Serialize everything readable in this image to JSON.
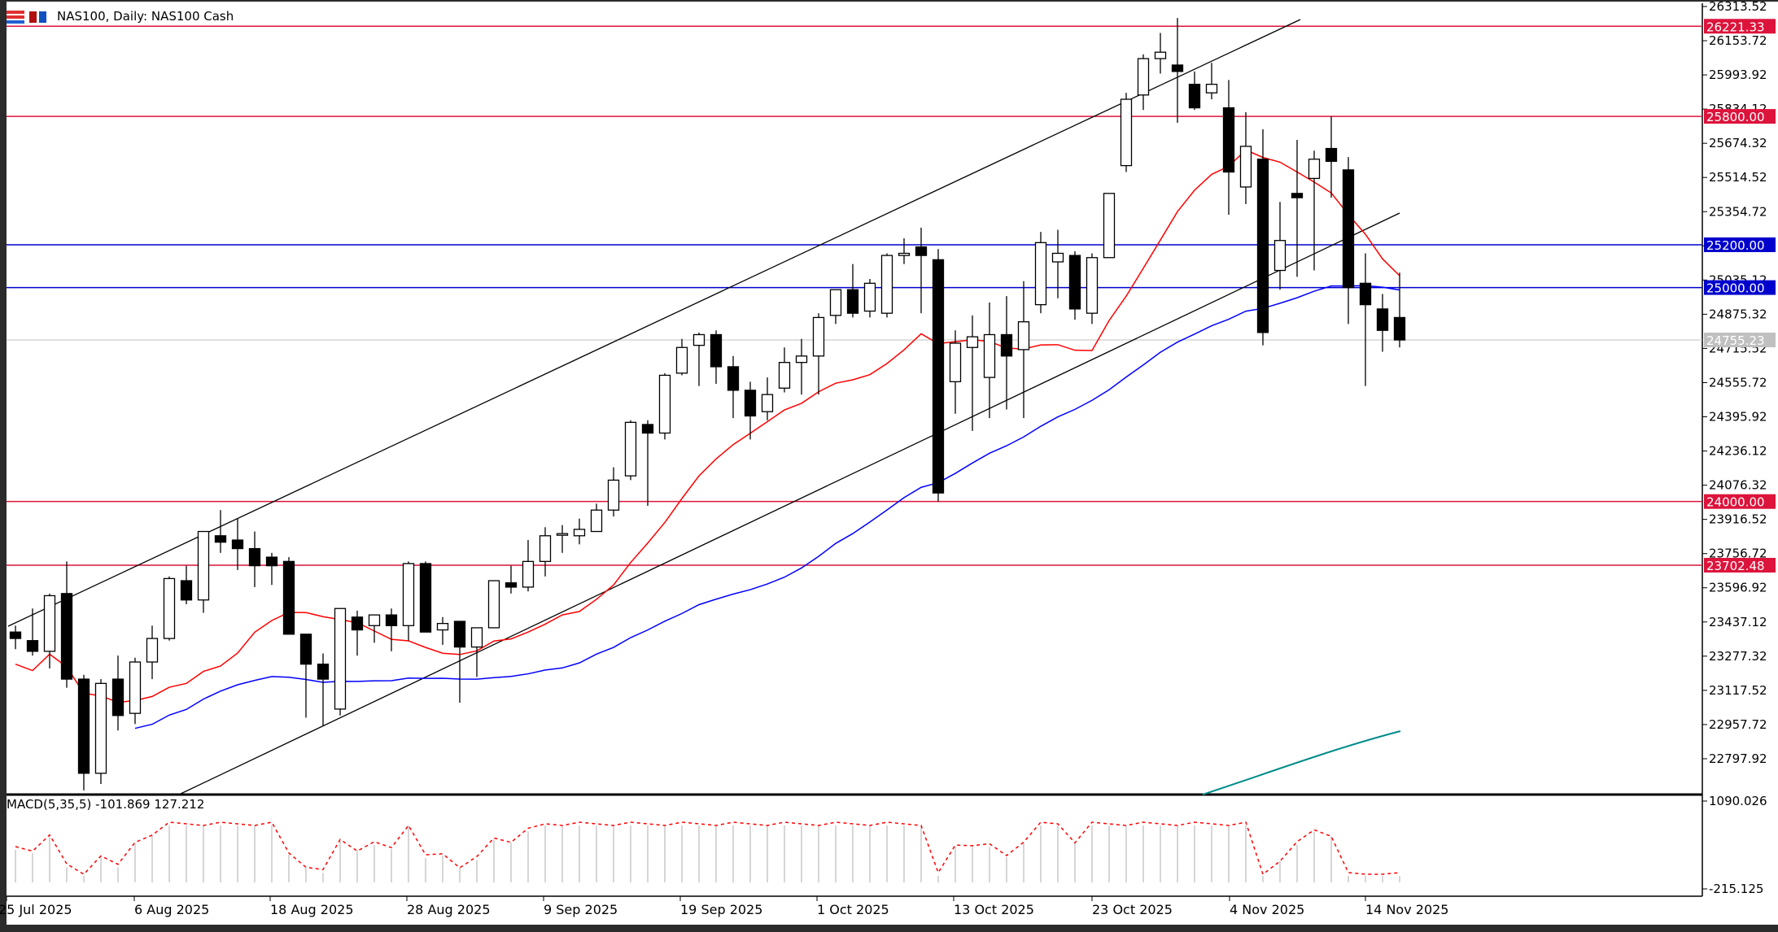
{
  "window": {
    "symbol": "NAS100",
    "timeframe": "Daily",
    "description": "NAS100 Cash",
    "title": "NAS100, Daily:  NAS100 Cash"
  },
  "indicator": {
    "macd_label": "MACD(5,35,5) -101.869 127.212",
    "macd_axis_max": "1090.026",
    "macd_axis_min": "-215.125"
  },
  "colors": {
    "red_level": "#dc143c",
    "blue_level": "#0000cd",
    "current_price": "#c0c0c0",
    "ma_fast": "#ff0000",
    "ma_slow": "#0000ff",
    "ma_long": "#008b8b",
    "signal": "#ff0000",
    "histogram": "#c8c8c8"
  },
  "chart_data": {
    "type": "candlestick",
    "title": "NAS100, Daily: NAS100 Cash",
    "price_axis_ticks": [
      "26313.52",
      "26153.72",
      "25993.92",
      "25834.12",
      "25674.32",
      "25514.52",
      "25354.72",
      "25194.92",
      "25035.12",
      "24875.32",
      "24715.52",
      "24555.72",
      "24395.92",
      "24236.12",
      "24076.32",
      "23916.52",
      "23756.72",
      "23596.92",
      "23437.12",
      "23277.32",
      "23117.52",
      "22957.72",
      "22797.92"
    ],
    "date_axis_ticks": [
      "25 Jul 2025",
      "6 Aug 2025",
      "18 Aug 2025",
      "28 Aug 2025",
      "9 Sep 2025",
      "19 Sep 2025",
      "1 Oct 2025",
      "13 Oct 2025",
      "23 Oct 2025",
      "4 Nov 2025",
      "14 Nov 2025"
    ],
    "horizontal_levels": [
      {
        "price": 26221.33,
        "label": "26221.33",
        "color": "red"
      },
      {
        "price": 25800.0,
        "label": "25800.00",
        "color": "red"
      },
      {
        "price": 25200.0,
        "label": "25200.00",
        "color": "blue"
      },
      {
        "price": 25000.0,
        "label": "25000.00",
        "color": "blue"
      },
      {
        "price": 24755.23,
        "label": "24755.23",
        "color": "gray",
        "current": true
      },
      {
        "price": 24000.0,
        "label": "24000.00",
        "color": "red"
      },
      {
        "price": 23702.48,
        "label": "23702.48",
        "color": "red"
      }
    ],
    "current_price": 24755.23,
    "ylim": [
      22700,
      26330
    ],
    "candles_ohlc": [
      [
        23390,
        23420,
        23310,
        23360
      ],
      [
        23350,
        23500,
        23280,
        23300
      ],
      [
        23300,
        23570,
        23220,
        23560
      ],
      [
        23570,
        23720,
        23130,
        23170
      ],
      [
        23170,
        23190,
        22650,
        22730
      ],
      [
        22730,
        23170,
        22680,
        23150
      ],
      [
        23170,
        23280,
        22930,
        23000
      ],
      [
        23010,
        23270,
        22960,
        23250
      ],
      [
        23250,
        23420,
        23170,
        23360
      ],
      [
        23360,
        23650,
        23350,
        23640
      ],
      [
        23630,
        23700,
        23520,
        23540
      ],
      [
        23540,
        23860,
        23480,
        23860
      ],
      [
        23840,
        23960,
        23760,
        23810
      ],
      [
        23820,
        23920,
        23680,
        23780
      ],
      [
        23780,
        23860,
        23600,
        23700
      ],
      [
        23740,
        23760,
        23610,
        23700
      ],
      [
        23720,
        23740,
        23380,
        23380
      ],
      [
        23380,
        23380,
        22990,
        23240
      ],
      [
        23240,
        23290,
        22950,
        23170
      ],
      [
        23030,
        23500,
        23000,
        23500
      ],
      [
        23460,
        23490,
        23280,
        23400
      ],
      [
        23420,
        23470,
        23340,
        23470
      ],
      [
        23470,
        23500,
        23300,
        23420
      ],
      [
        23420,
        23720,
        23350,
        23710
      ],
      [
        23710,
        23720,
        23390,
        23390
      ],
      [
        23400,
        23460,
        23330,
        23430
      ],
      [
        23440,
        23440,
        23060,
        23320
      ],
      [
        23320,
        23360,
        23180,
        23410
      ],
      [
        23410,
        23630,
        23410,
        23630
      ],
      [
        23620,
        23700,
        23570,
        23600
      ],
      [
        23600,
        23820,
        23580,
        23720
      ],
      [
        23720,
        23880,
        23650,
        23840
      ],
      [
        23850,
        23890,
        23760,
        23850
      ],
      [
        23840,
        23920,
        23800,
        23870
      ],
      [
        23860,
        23990,
        23940,
        23960
      ],
      [
        23960,
        24160,
        23930,
        24100
      ],
      [
        24120,
        24380,
        24100,
        24370
      ],
      [
        24360,
        24380,
        23980,
        24320
      ],
      [
        24320,
        24600,
        24290,
        24590
      ],
      [
        24600,
        24760,
        24590,
        24720
      ],
      [
        24730,
        24790,
        24540,
        24780
      ],
      [
        24780,
        24800,
        24550,
        24630
      ],
      [
        24630,
        24680,
        24390,
        24520
      ],
      [
        24520,
        24560,
        24290,
        24400
      ],
      [
        24420,
        24580,
        24380,
        24500
      ],
      [
        24530,
        24720,
        24510,
        24650
      ],
      [
        24650,
        24760,
        24500,
        24680
      ],
      [
        24680,
        24880,
        24500,
        24860
      ],
      [
        24870,
        24970,
        24830,
        24990
      ],
      [
        24990,
        25110,
        24860,
        24880
      ],
      [
        24890,
        25040,
        24860,
        25020
      ],
      [
        24880,
        25160,
        24860,
        25150
      ],
      [
        25150,
        25230,
        25110,
        25160
      ],
      [
        25190,
        25280,
        24880,
        25150
      ],
      [
        25130,
        25180,
        24000,
        24040
      ],
      [
        24560,
        24800,
        24410,
        24740
      ],
      [
        24720,
        24870,
        24330,
        24770
      ],
      [
        24580,
        24930,
        24390,
        24780
      ],
      [
        24780,
        24960,
        24430,
        24680
      ],
      [
        24710,
        25030,
        24390,
        24840
      ],
      [
        24920,
        25260,
        24880,
        25210
      ],
      [
        25120,
        25270,
        24950,
        25160
      ],
      [
        25150,
        25170,
        24850,
        24900
      ],
      [
        24880,
        25160,
        24830,
        25140
      ],
      [
        25140,
        25440,
        25140,
        25440
      ],
      [
        25570,
        25910,
        25540,
        25880
      ],
      [
        25900,
        26090,
        25830,
        26070
      ],
      [
        26070,
        26190,
        26000,
        26100
      ],
      [
        26040,
        26260,
        25770,
        26010
      ],
      [
        25950,
        26010,
        25830,
        25840
      ],
      [
        25910,
        26050,
        25880,
        25950
      ],
      [
        25840,
        25970,
        25340,
        25540
      ],
      [
        25470,
        25820,
        25390,
        25660
      ],
      [
        25600,
        25740,
        24730,
        24790
      ],
      [
        25080,
        25400,
        24990,
        25220
      ],
      [
        25440,
        25690,
        25050,
        25420
      ],
      [
        25510,
        25640,
        25080,
        25600
      ],
      [
        25650,
        25800,
        25420,
        25590
      ],
      [
        25550,
        25610,
        24830,
        25000
      ],
      [
        25020,
        25160,
        24540,
        24920
      ],
      [
        24900,
        24970,
        24700,
        24800
      ],
      [
        24860,
        25070,
        24720,
        24755
      ]
    ],
    "ma_fast_series_name": "MA red (fast)",
    "ma_slow_series_name": "MA blue",
    "ma_long_series_name": "MA teal",
    "macd": {
      "main": -101.869,
      "signal": 127.212,
      "range": [
        -215.125,
        1090.026
      ]
    }
  }
}
